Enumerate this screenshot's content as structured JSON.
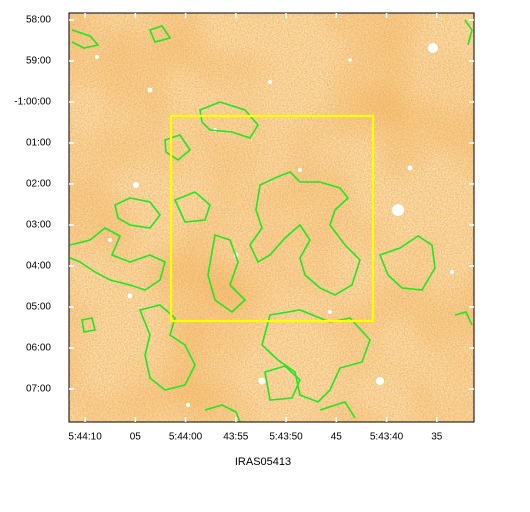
{
  "chart_data": {
    "type": "image",
    "title": "IRAS05413",
    "xlim": [
      20651.6,
      20611.3
    ],
    "xticks": [
      {
        "value": 20650,
        "label": "5:44:10"
      },
      {
        "value": 20645,
        "label": "05"
      },
      {
        "value": 20640,
        "label": "5:44:00"
      },
      {
        "value": 20635,
        "label": "43:55"
      },
      {
        "value": 20630,
        "label": "5:43:50"
      },
      {
        "value": 20625,
        "label": "45"
      },
      {
        "value": 20620,
        "label": "5:43:40"
      },
      {
        "value": 20615,
        "label": "35"
      }
    ],
    "ylim": [
      -4068.3,
      -3469.8
    ],
    "yticks": [
      {
        "value": -3480,
        "label": "58:00"
      },
      {
        "value": -3540,
        "label": "59:00"
      },
      {
        "value": -3600,
        "label": "-1:00:00"
      },
      {
        "value": -3660,
        "label": "01:00"
      },
      {
        "value": -3720,
        "label": "02:00"
      },
      {
        "value": -3780,
        "label": "03:00"
      },
      {
        "value": -3840,
        "label": "04:00"
      },
      {
        "value": -3900,
        "label": "05:00"
      },
      {
        "value": -3960,
        "label": "06:00"
      },
      {
        "value": -4020,
        "label": "07:00"
      }
    ]
  }
}
